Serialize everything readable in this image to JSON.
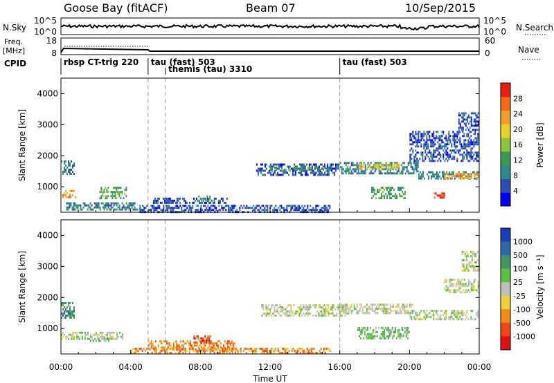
{
  "header": {
    "station": "Goose Bay (fitACF)",
    "beam": "Beam 07",
    "date": "10/Sep/2015"
  },
  "top_panels": {
    "nsky_label": "N.Sky",
    "nsky_ticks": [
      "10^5",
      "10^0"
    ],
    "nsearch_ticks": [
      "10^5",
      "10^0"
    ],
    "nsearch_label": "N.Search",
    "freq_label_line1": "Freq.",
    "freq_label_line2": "[MHz]",
    "freq_ticks": [
      "18",
      "8"
    ],
    "nave_ticks": [
      "60",
      "0"
    ],
    "nave_label": "Nave",
    "cpid_label": "CPID",
    "cpid_segments": [
      {
        "text": "rbsp CT-trig 220",
        "start_hour": 0.0
      },
      {
        "text": "tau (fast) 503",
        "start_hour": 5.0
      },
      {
        "text": "themis (tau) 3310",
        "start_hour": 6.0
      },
      {
        "text": "tau (fast) 503",
        "start_hour": 16.0
      }
    ]
  },
  "power_colorbar": {
    "label": "Power [dB]",
    "ticks": [
      "4",
      "8",
      "12",
      "16",
      "20",
      "24",
      "28"
    ],
    "colors": [
      "#0000ff",
      "#2f4cb0",
      "#2e8b8b",
      "#3c9a50",
      "#8cc43c",
      "#e8d028",
      "#f0a028",
      "#f06a18",
      "#e82010"
    ]
  },
  "velocity_colorbar": {
    "label": "Velocity [m s⁻¹]",
    "ticks": [
      "1000",
      "500",
      "100",
      "25",
      "-25",
      "-100",
      "-500",
      "-1000"
    ],
    "colors": [
      "#1a3fb8",
      "#2a6aa8",
      "#3f9860",
      "#5cc040",
      "#c0c0b8",
      "#f0d038",
      "#f08a18",
      "#f04810",
      "#e01010"
    ]
  },
  "chart_data": {
    "type": "heatmap",
    "x_unit": "hours UT",
    "xlim": [
      0,
      24
    ],
    "x_tick_labels": [
      "00:00",
      "04:00",
      "08:00",
      "12:00",
      "16:00",
      "20:00",
      "00:00"
    ],
    "xlabel": "Time UT",
    "ylabel": "Slant Range [km]",
    "ylim": [
      180,
      4500
    ],
    "y_tick_labels": [
      "1000",
      "2000",
      "3000",
      "4000"
    ],
    "vertical_markers_hours": [
      5.0,
      6.0,
      16.0
    ],
    "power_regions": [
      {
        "t0": 0.0,
        "t1": 0.9,
        "r0": 650,
        "r1": 900,
        "level": 6
      },
      {
        "t0": 0.0,
        "t1": 0.8,
        "r0": 1400,
        "r1": 1850,
        "level": 2
      },
      {
        "t0": 2.2,
        "t1": 3.8,
        "r0": 600,
        "r1": 1000,
        "level": 3
      },
      {
        "t0": 0.3,
        "t1": 4.5,
        "r0": 200,
        "r1": 500,
        "level": 2
      },
      {
        "t0": 5.2,
        "t1": 9.6,
        "r0": 450,
        "r1": 650,
        "level": 1
      },
      {
        "t0": 7.8,
        "t1": 8.8,
        "r0": 500,
        "r1": 720,
        "level": 3
      },
      {
        "t0": 4.5,
        "t1": 15.5,
        "r0": 180,
        "r1": 420,
        "level": 1
      },
      {
        "t0": 11.2,
        "t1": 16.0,
        "r0": 1380,
        "r1": 1750,
        "level": 1
      },
      {
        "t0": 12.0,
        "t1": 15.5,
        "r0": 1500,
        "r1": 1650,
        "level": 3
      },
      {
        "t0": 16.0,
        "t1": 20.5,
        "r0": 1400,
        "r1": 1800,
        "level": 2
      },
      {
        "t0": 17.0,
        "t1": 19.5,
        "r0": 1550,
        "r1": 1750,
        "level": 5
      },
      {
        "t0": 17.8,
        "t1": 19.8,
        "r0": 600,
        "r1": 1000,
        "level": 3
      },
      {
        "t0": 20.5,
        "t1": 24.0,
        "r0": 1200,
        "r1": 1500,
        "level": 2
      },
      {
        "t0": 22.0,
        "t1": 24.0,
        "r0": 1250,
        "r1": 1450,
        "level": 6
      },
      {
        "t0": 21.4,
        "t1": 22.0,
        "r0": 600,
        "r1": 820,
        "level": 8
      },
      {
        "t0": 20.0,
        "t1": 24.0,
        "r0": 1800,
        "r1": 2800,
        "level": 1
      },
      {
        "t0": 22.8,
        "t1": 24.0,
        "r0": 2800,
        "r1": 3400,
        "level": 1
      }
    ],
    "velocity_regions": [
      {
        "t0": 0.0,
        "t1": 3.6,
        "r0": 620,
        "r1": 900,
        "level": 4
      },
      {
        "t0": 1.5,
        "t1": 3.0,
        "r0": 550,
        "r1": 700,
        "level": 3
      },
      {
        "t0": 0.0,
        "t1": 0.8,
        "r0": 1300,
        "r1": 1850,
        "level": 2
      },
      {
        "t0": 5.0,
        "t1": 10.0,
        "r0": 300,
        "r1": 620,
        "level": 6
      },
      {
        "t0": 7.6,
        "t1": 8.6,
        "r0": 480,
        "r1": 780,
        "level": 7
      },
      {
        "t0": 4.0,
        "t1": 15.5,
        "r0": 180,
        "r1": 380,
        "level": 6
      },
      {
        "t0": 11.5,
        "t1": 16.5,
        "r0": 1400,
        "r1": 1780,
        "level": 4
      },
      {
        "t0": 16.0,
        "t1": 20.2,
        "r0": 1450,
        "r1": 1800,
        "level": 4
      },
      {
        "t0": 17.0,
        "t1": 20.0,
        "r0": 650,
        "r1": 1050,
        "level": 3
      },
      {
        "t0": 20.0,
        "t1": 24.0,
        "r0": 1250,
        "r1": 1600,
        "level": 4
      },
      {
        "t0": 22.0,
        "t1": 24.0,
        "r0": 2100,
        "r1": 2600,
        "level": 4
      },
      {
        "t0": 23.0,
        "t1": 24.0,
        "r0": 2800,
        "r1": 3500,
        "level": 4
      }
    ]
  }
}
